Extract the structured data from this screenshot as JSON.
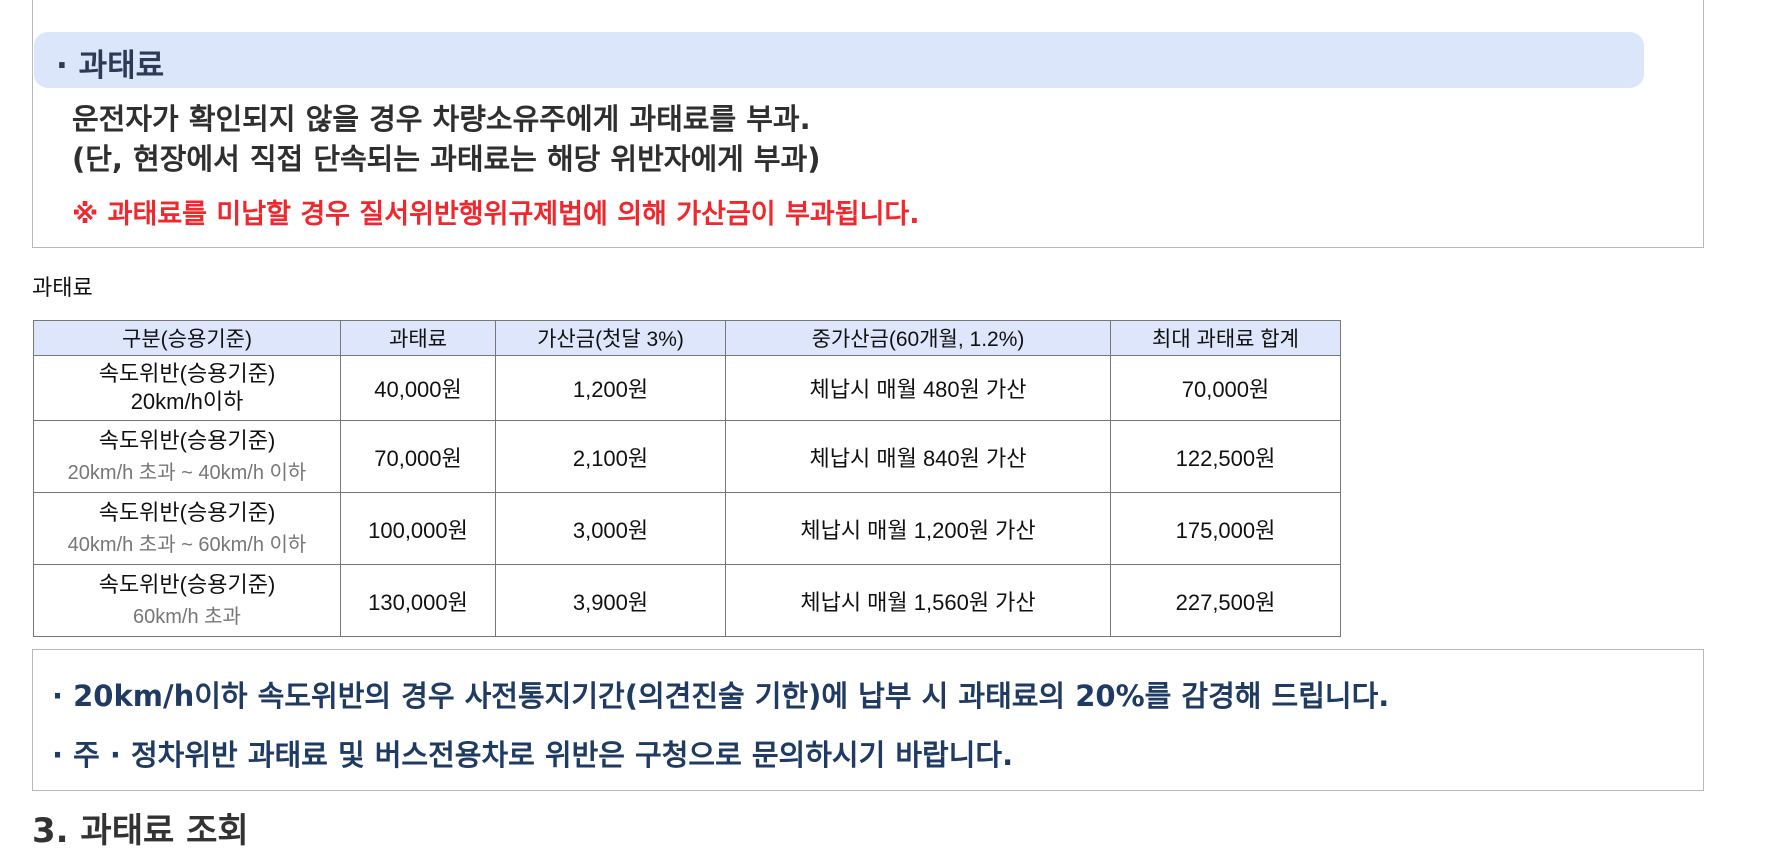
{
  "notice": {
    "title": "· 과태료",
    "desc_line1": "운전자가 확인되지 않을 경우 차량소유주에게 과태료를 부과.",
    "desc_line2": "(단, 현장에서 직접 단속되는 과태료는 해당 위반자에게 부과)",
    "warning": "※ 과태료를 미납할 경우 질서위반행위규제법에 의해 가산금이 부과됩니다."
  },
  "table_caption": "과태료",
  "table": {
    "headers": [
      "구분(승용기준)",
      "과태료",
      "가산금(첫달 3%)",
      "중가산금(60개월, 1.2%)",
      "최대 과태료 합계"
    ],
    "rows": [
      {
        "category": "속도위반(승용기준)",
        "range": "20km/h이하",
        "fine": "40,000원",
        "surcharge": "1,200원",
        "heavy_surcharge": "체납시 매월 480원 가산",
        "max_total": "70,000원"
      },
      {
        "category": "속도위반(승용기준)",
        "range": "20km/h 초과 ~ 40km/h 이하",
        "fine": "70,000원",
        "surcharge": "2,100원",
        "heavy_surcharge": "체납시 매월 840원 가산",
        "max_total": "122,500원"
      },
      {
        "category": "속도위반(승용기준)",
        "range": "40km/h 초과 ~ 60km/h 이하",
        "fine": "100,000원",
        "surcharge": "3,000원",
        "heavy_surcharge": "체납시 매월 1,200원 가산",
        "max_total": "175,000원"
      },
      {
        "category": "속도위반(승용기준)",
        "range": "60km/h 초과",
        "fine": "130,000원",
        "surcharge": "3,900원",
        "heavy_surcharge": "체납시 매월 1,560원 가산",
        "max_total": "227,500원"
      }
    ]
  },
  "notes": {
    "line1": "· 20km/h이하 속도위반의 경우 사전통지기간(의견진술 기한)에 납부 시 과태료의 20%를 감경해 드립니다.",
    "line2": "· 주 · 정차위반 과태료 및 버스전용차로 위반은 구청으로 문의하시기 바랍니다."
  },
  "next_section_heading": "3. 과태료 조회",
  "colors": {
    "pill_bg": "#dbe6fb",
    "header_bg": "#dde6fb",
    "warning_red": "#f0282e",
    "note_navy": "#1f3b63"
  }
}
